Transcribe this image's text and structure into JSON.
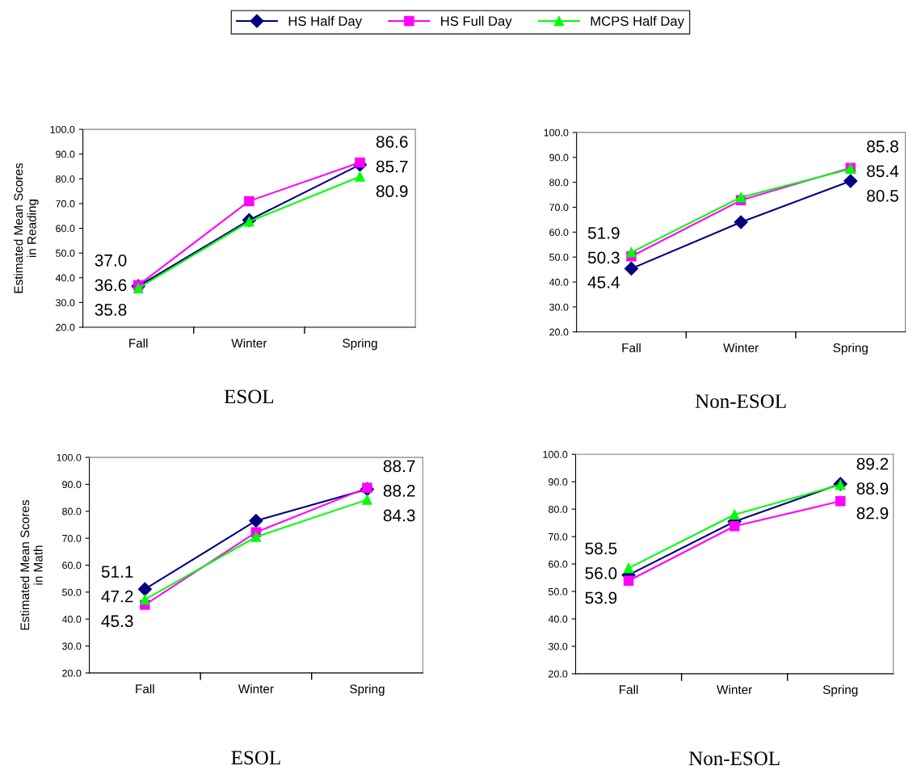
{
  "chart_data": [
    {
      "type": "line",
      "title": "ESOL",
      "ylabel": "Estimated Mean Scores\nin Reading",
      "categories": [
        "Fall",
        "Winter",
        "Spring"
      ],
      "ylim": [
        20,
        100
      ],
      "yticks": [
        {
          "value": 20,
          "label": "20.0"
        },
        {
          "value": 30,
          "label": "30.0"
        },
        {
          "value": 40,
          "label": "40.0"
        },
        {
          "value": 50,
          "label": "50.0"
        },
        {
          "value": 60,
          "label": "60.0"
        },
        {
          "value": 70,
          "label": "70.0"
        },
        {
          "value": 80,
          "label": "80.0"
        },
        {
          "value": 90,
          "label": "90.0"
        },
        {
          "value": 100,
          "label": "100.0"
        }
      ],
      "grid": false,
      "legend": "top",
      "series": [
        {
          "name": "HS Half Day",
          "color": "#000080",
          "marker": "diamond",
          "values": [
            36.6,
            63.3,
            85.7
          ],
          "value_labels": [
            "36.6",
            null,
            "85.7"
          ]
        },
        {
          "name": "HS Full Day",
          "color": "#ff00ff",
          "marker": "square",
          "values": [
            37.0,
            71.0,
            86.6
          ],
          "value_labels": [
            "37.0",
            null,
            "86.6"
          ]
        },
        {
          "name": "MCPS Half Day",
          "color": "#00ff00",
          "marker": "triangle",
          "values": [
            35.8,
            62.7,
            80.9
          ],
          "value_labels": [
            "35.8",
            null,
            "80.9"
          ]
        }
      ]
    },
    {
      "type": "line",
      "title": "Non-ESOL",
      "categories": [
        "Fall",
        "Winter",
        "Spring"
      ],
      "ylim": [
        20,
        100
      ],
      "yticks": [
        {
          "value": 20,
          "label": "20.0"
        },
        {
          "value": 30,
          "label": "30.0"
        },
        {
          "value": 40,
          "label": "40.0"
        },
        {
          "value": 50,
          "label": "50.0"
        },
        {
          "value": 60,
          "label": "60.0"
        },
        {
          "value": 70,
          "label": "70.0"
        },
        {
          "value": 80,
          "label": "80.0"
        },
        {
          "value": 90,
          "label": "90.0"
        },
        {
          "value": 100,
          "label": "100.0"
        }
      ],
      "grid": false,
      "series": [
        {
          "color": "#000080",
          "marker": "diamond",
          "values": [
            45.4,
            64.0,
            80.5
          ],
          "value_labels": [
            "45.4",
            null,
            "80.5"
          ]
        },
        {
          "color": "#ff00ff",
          "marker": "square",
          "values": [
            50.3,
            72.8,
            85.8
          ],
          "value_labels": [
            "50.3",
            null,
            "85.8"
          ]
        },
        {
          "color": "#00ff00",
          "marker": "triangle",
          "values": [
            51.9,
            74.0,
            85.4
          ],
          "value_labels": [
            "51.9",
            null,
            "85.4"
          ]
        }
      ]
    },
    {
      "type": "line",
      "title": "ESOL",
      "ylabel": "Estimated Mean Scores\nin Math",
      "categories": [
        "Fall",
        "Winter",
        "Spring"
      ],
      "ylim": [
        20,
        100
      ],
      "yticks": [
        {
          "value": 20,
          "label": "20.0"
        },
        {
          "value": 30,
          "label": "30.0"
        },
        {
          "value": 40,
          "label": "40.0"
        },
        {
          "value": 50,
          "label": "50.0"
        },
        {
          "value": 60,
          "label": "60.0"
        },
        {
          "value": 70,
          "label": "70.0"
        },
        {
          "value": 80,
          "label": "80.0"
        },
        {
          "value": 90,
          "label": "90.0"
        },
        {
          "value": 100,
          "label": "100.0"
        }
      ],
      "grid": false,
      "series": [
        {
          "color": "#000080",
          "marker": "diamond",
          "values": [
            51.1,
            76.5,
            88.2
          ],
          "value_labels": [
            "51.1",
            null,
            "88.2"
          ]
        },
        {
          "color": "#ff00ff",
          "marker": "square",
          "values": [
            45.3,
            72.2,
            88.7
          ],
          "value_labels": [
            "45.3",
            null,
            "88.7"
          ]
        },
        {
          "color": "#00ff00",
          "marker": "triangle",
          "values": [
            47.2,
            70.5,
            84.3
          ],
          "value_labels": [
            "47.2",
            null,
            "84.3"
          ]
        }
      ]
    },
    {
      "type": "line",
      "title": "Non-ESOL",
      "categories": [
        "Fall",
        "Winter",
        "Spring"
      ],
      "ylim": [
        20,
        100
      ],
      "yticks": [
        {
          "value": 20,
          "label": "20.0"
        },
        {
          "value": 30,
          "label": "30.0"
        },
        {
          "value": 40,
          "label": "40.0"
        },
        {
          "value": 50,
          "label": "50.0"
        },
        {
          "value": 60,
          "label": "60.0"
        },
        {
          "value": 70,
          "label": "70.0"
        },
        {
          "value": 80,
          "label": "80.0"
        },
        {
          "value": 90,
          "label": "90.0"
        },
        {
          "value": 100,
          "label": "100.0"
        }
      ],
      "grid": false,
      "series": [
        {
          "color": "#000080",
          "marker": "diamond",
          "values": [
            56.0,
            75.5,
            89.2
          ],
          "value_labels": [
            "56.0",
            null,
            "89.2"
          ]
        },
        {
          "color": "#ff00ff",
          "marker": "square",
          "values": [
            53.9,
            73.8,
            82.9
          ],
          "value_labels": [
            "53.9",
            null,
            "82.9"
          ]
        },
        {
          "color": "#00ff00",
          "marker": "triangle",
          "values": [
            58.5,
            78.0,
            88.9
          ],
          "value_labels": [
            "58.5",
            null,
            "88.9"
          ]
        }
      ]
    }
  ]
}
